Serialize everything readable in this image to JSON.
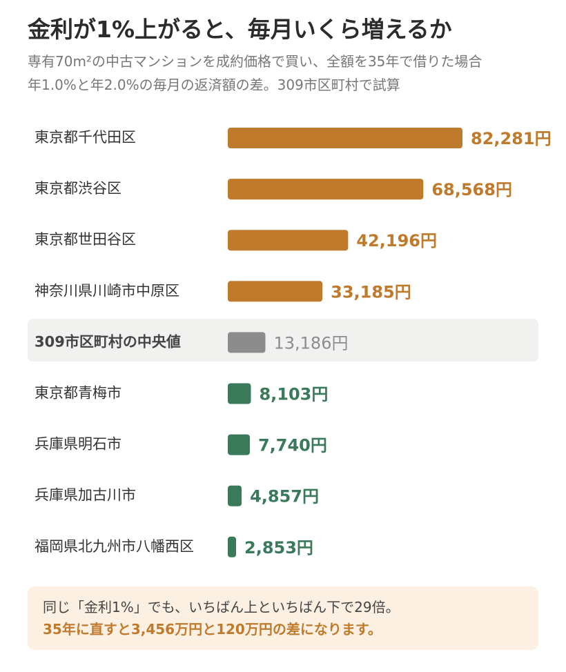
{
  "header": {
    "title": "金利が1%上がると、毎月いくら増えるか",
    "subtitle_line1": "専有70m²の中古マンションを成約価格で買い、全額を35年で借りた場合",
    "subtitle_line2": "年1.0%と年2.0%の毎月の返済額の差。309市区町村で試算"
  },
  "chart_data": {
    "type": "bar",
    "orientation": "horizontal",
    "title": "金利が1%上がると、毎月いくら増えるか",
    "unit": "円",
    "categories": [
      "東京都千代田区",
      "東京都渋谷区",
      "東京都世田谷区",
      "神奈川県川崎市中原区",
      "309市区町村の中央値",
      "東京都青梅市",
      "兵庫県明石市",
      "兵庫県加古川市",
      "福岡県北九州市八幡西区"
    ],
    "values": [
      82281,
      68568,
      42196,
      33185,
      13186,
      8103,
      7740,
      4857,
      2853
    ],
    "value_labels": [
      "82,281円",
      "68,568円",
      "42,196円",
      "33,185円",
      "13,186円",
      "8,103円",
      "7,740円",
      "4,857円",
      "2,853円"
    ],
    "groups": [
      "high",
      "high",
      "high",
      "high",
      "median",
      "low",
      "low",
      "low",
      "low"
    ],
    "colors": {
      "high": "#c07a2c",
      "median": "#8c8c8c",
      "low": "#3a7a5b"
    },
    "xlim": [
      0,
      82281
    ],
    "grid": false,
    "legend": "none"
  },
  "note": {
    "line1": "同じ「金利1%」でも、いちばん上といちばん下で29倍。",
    "line2": "35年に直すと3,456万円と120万円の差になります。"
  }
}
